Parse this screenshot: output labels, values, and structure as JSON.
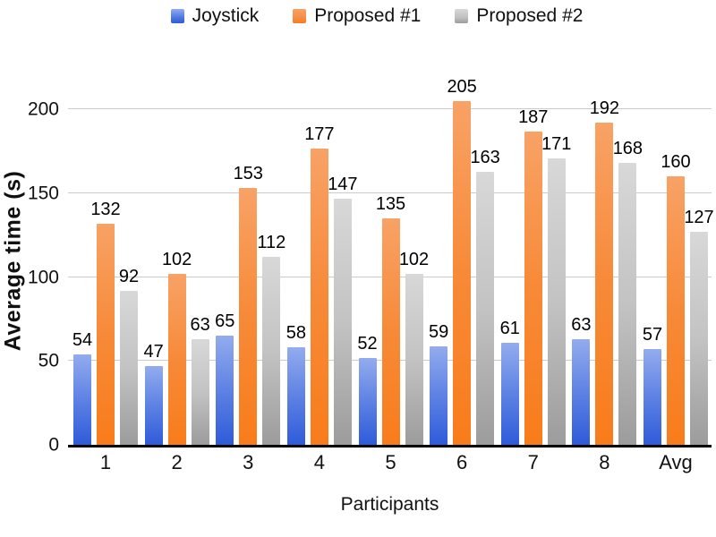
{
  "chart_data": {
    "type": "bar",
    "title": "",
    "xlabel": "Participants",
    "ylabel": "Average time (s)",
    "categories": [
      "1",
      "2",
      "3",
      "4",
      "5",
      "6",
      "7",
      "8",
      "Avg"
    ],
    "series": [
      {
        "name": "Joystick",
        "values": [
          54,
          47,
          65,
          58,
          52,
          59,
          61,
          63,
          57
        ],
        "color_top": "#93ACEE",
        "color_mid": "#5E82E4",
        "color_bottom": "#2E5BD9",
        "legend_color": "#4C79DF"
      },
      {
        "name": "Proposed #1",
        "values": [
          132,
          102,
          153,
          177,
          135,
          205,
          187,
          192,
          160
        ],
        "color_top": "#F8A266",
        "color_mid": "#F78A38",
        "color_bottom": "#F97C1B",
        "legend_color": "#F58D4B"
      },
      {
        "name": "Proposed #2",
        "values": [
          92,
          63,
          112,
          147,
          102,
          163,
          171,
          168,
          127
        ],
        "color_top": "#D8D8D8",
        "color_mid": "#C3C3C3",
        "color_bottom": "#9C9C9C",
        "legend_color": "#C0C0C0"
      }
    ],
    "yticks": [
      0,
      50,
      100,
      150,
      200
    ],
    "ylim": [
      0,
      220
    ],
    "grid": true,
    "grid_color": "#CBCBCB",
    "axis_color": "#000000",
    "text_color": "#111111",
    "legend_position": "top",
    "background_color": "#FFFFFF"
  }
}
